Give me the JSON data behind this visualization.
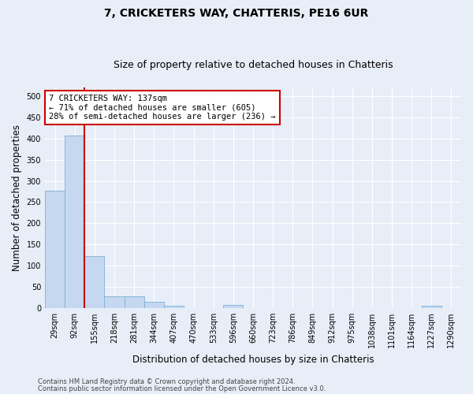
{
  "title": "7, CRICKETERS WAY, CHATTERIS, PE16 6UR",
  "subtitle": "Size of property relative to detached houses in Chatteris",
  "xlabel": "Distribution of detached houses by size in Chatteris",
  "ylabel": "Number of detached properties",
  "footer_line1": "Contains HM Land Registry data © Crown copyright and database right 2024.",
  "footer_line2": "Contains public sector information licensed under the Open Government Licence v3.0.",
  "bin_labels": [
    "29sqm",
    "92sqm",
    "155sqm",
    "218sqm",
    "281sqm",
    "344sqm",
    "407sqm",
    "470sqm",
    "533sqm",
    "596sqm",
    "660sqm",
    "723sqm",
    "786sqm",
    "849sqm",
    "912sqm",
    "975sqm",
    "1038sqm",
    "1101sqm",
    "1164sqm",
    "1227sqm",
    "1290sqm"
  ],
  "bar_values": [
    277,
    408,
    122,
    28,
    28,
    15,
    5,
    0,
    0,
    6,
    0,
    0,
    0,
    0,
    0,
    0,
    0,
    0,
    0,
    5,
    0
  ],
  "bar_color": "#c5d8f0",
  "bar_edge_color": "#7bafd4",
  "ylim": [
    0,
    520
  ],
  "yticks": [
    0,
    50,
    100,
    150,
    200,
    250,
    300,
    350,
    400,
    450,
    500
  ],
  "vline_color": "#cc0000",
  "vline_x": 1.5,
  "annotation_line1": "7 CRICKETERS WAY: 137sqm",
  "annotation_line2": "← 71% of detached houses are smaller (605)",
  "annotation_line3": "28% of semi-detached houses are larger (236) →",
  "annotation_box_color": "#ffffff",
  "annotation_box_edge": "#cc0000",
  "bg_color": "#e8eef8",
  "plot_bg_color": "#e8eef8",
  "grid_color": "#ffffff",
  "title_fontsize": 10,
  "subtitle_fontsize": 9,
  "axis_label_fontsize": 8.5,
  "tick_fontsize": 7,
  "annotation_fontsize": 7.5,
  "footer_fontsize": 6
}
